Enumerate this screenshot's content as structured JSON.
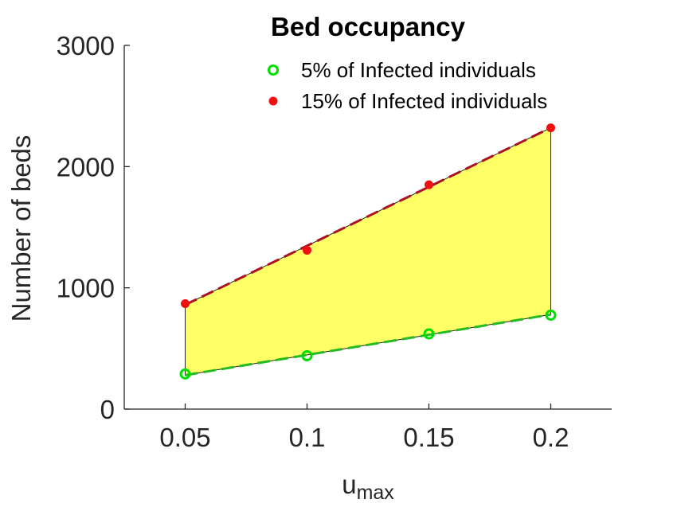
{
  "chart_data": {
    "type": "scatter",
    "title": "Bed occupancy",
    "xlabel_main": "u",
    "xlabel_sub": "max",
    "ylabel": "Number of beds",
    "xlim": [
      0.025,
      0.225
    ],
    "ylim": [
      0,
      3000
    ],
    "xticks": [
      0.05,
      0.1,
      0.15,
      0.2
    ],
    "xtick_labels": [
      "0.05",
      "0.1",
      "0.15",
      "0.2"
    ],
    "yticks": [
      0,
      1000,
      2000,
      3000
    ],
    "ytick_labels": [
      "0",
      "1000",
      "2000",
      "3000"
    ],
    "grid": false,
    "legend_position": "top-right",
    "fill_between": {
      "color": "#ffff66",
      "between": [
        "5% of Infected individuals",
        "15% of Infected individuals"
      ]
    },
    "series": [
      {
        "name": "5% of Infected individuals",
        "marker": "open-circle",
        "color": "#00dd00",
        "x": [
          0.05,
          0.1,
          0.15,
          0.2
        ],
        "values": [
          290,
          440,
          620,
          775
        ],
        "fit_line": {
          "style": "dashed",
          "color": "#22bb22",
          "values": [
            280,
            447,
            613,
            780
          ]
        }
      },
      {
        "name": "15% of Infected individuals",
        "marker": "filled-circle",
        "color": "#ee1111",
        "x": [
          0.05,
          0.1,
          0.15,
          0.2
        ],
        "values": [
          870,
          1310,
          1850,
          2320
        ],
        "fit_line": {
          "style": "dashed",
          "color": "#aa1122",
          "values": [
            860,
            1347,
            1833,
            2320
          ]
        }
      }
    ]
  }
}
